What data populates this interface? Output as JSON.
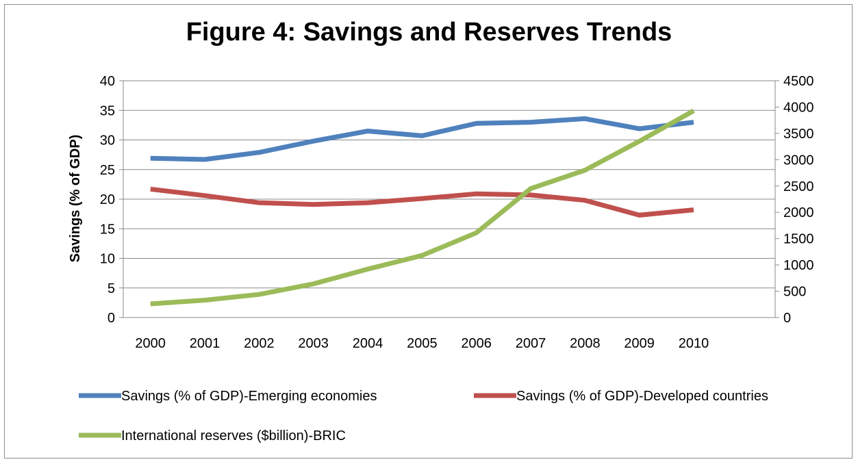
{
  "chart_data": {
    "type": "line",
    "title": "Figure 4: Savings and Reserves Trends",
    "ylabel": "Savings (% of GDP)",
    "y2label": "",
    "xlabel": "",
    "x": [
      "2000",
      "2001",
      "2002",
      "2003",
      "2004",
      "2005",
      "2006",
      "2007",
      "2008",
      "2009",
      "2010"
    ],
    "ylim": [
      0,
      40
    ],
    "y_ticks": [
      "0",
      "5",
      "10",
      "15",
      "20",
      "25",
      "30",
      "35",
      "40"
    ],
    "y2lim": [
      0,
      4500
    ],
    "y2_ticks": [
      "0",
      "500",
      "1000",
      "1500",
      "2000",
      "2500",
      "3000",
      "3500",
      "4000",
      "4500"
    ],
    "grid": true,
    "legend_position": "bottom",
    "series": [
      {
        "name": "Savings (% of GDP)-Emerging economies",
        "axis": "left",
        "color": "#4f81bd",
        "values": [
          26.9,
          26.7,
          27.9,
          29.8,
          31.5,
          30.7,
          32.8,
          33.0,
          33.6,
          31.9,
          33.0
        ]
      },
      {
        "name": "Savings (% of GDP)-Developed countries",
        "axis": "left",
        "color": "#c0504d",
        "values": [
          21.7,
          20.6,
          19.4,
          19.1,
          19.4,
          20.1,
          20.9,
          20.7,
          19.8,
          17.3,
          18.2
        ]
      },
      {
        "name": "International reserves ($billion)-BRIC",
        "axis": "right",
        "color": "#9bbb59",
        "values": [
          260,
          330,
          440,
          640,
          920,
          1180,
          1610,
          2450,
          2800,
          3350,
          3930
        ]
      }
    ]
  }
}
